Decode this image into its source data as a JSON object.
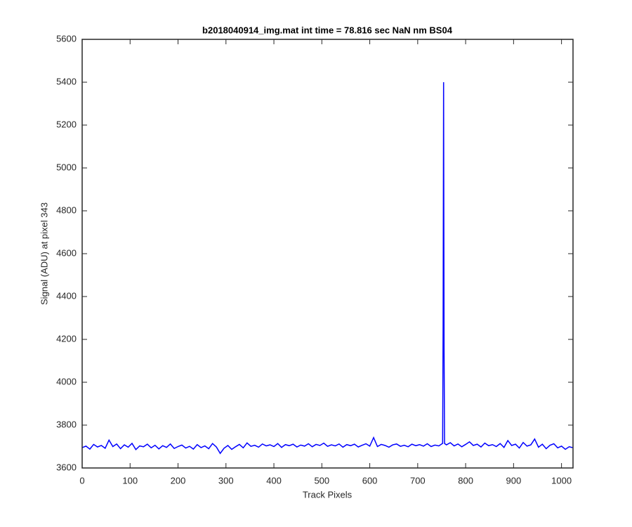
{
  "chart_data": {
    "type": "line",
    "title": "b2018040914_img.mat int time = 78.816 sec  NaN nm BS04",
    "x_label": "Track Pixels",
    "y_label": "Signal (ADU) at pixel 343",
    "xlim": [
      0,
      1024
    ],
    "ylim": [
      3600,
      5600
    ],
    "xticks": [
      0,
      100,
      200,
      300,
      400,
      500,
      600,
      700,
      800,
      900,
      1000
    ],
    "yticks": [
      3600,
      3800,
      4000,
      4200,
      4400,
      4600,
      4800,
      5000,
      5200,
      5400,
      5600
    ],
    "x": [
      0,
      8,
      16,
      24,
      32,
      40,
      48,
      56,
      64,
      72,
      80,
      88,
      96,
      104,
      112,
      120,
      128,
      136,
      144,
      152,
      160,
      168,
      176,
      184,
      192,
      200,
      208,
      216,
      224,
      232,
      240,
      248,
      256,
      264,
      272,
      280,
      288,
      296,
      304,
      312,
      320,
      328,
      336,
      344,
      352,
      360,
      368,
      376,
      384,
      392,
      400,
      408,
      416,
      424,
      432,
      440,
      448,
      456,
      464,
      472,
      480,
      488,
      496,
      504,
      512,
      520,
      528,
      536,
      544,
      552,
      560,
      568,
      576,
      584,
      592,
      600,
      608,
      616,
      624,
      632,
      640,
      648,
      656,
      664,
      672,
      680,
      688,
      696,
      704,
      712,
      720,
      728,
      736,
      744,
      750,
      752,
      753,
      754,
      755,
      756,
      760,
      768,
      776,
      784,
      792,
      800,
      808,
      816,
      824,
      832,
      840,
      848,
      856,
      864,
      872,
      880,
      888,
      896,
      904,
      912,
      920,
      928,
      936,
      944,
      952,
      960,
      968,
      976,
      984,
      992,
      1000,
      1008,
      1016,
      1023
    ],
    "series": [
      {
        "color": "#0000ff",
        "values": [
          3695,
          3702,
          3688,
          3710,
          3698,
          3705,
          3692,
          3730,
          3700,
          3712,
          3690,
          3708,
          3697,
          3715,
          3686,
          3703,
          3699,
          3711,
          3694,
          3706,
          3689,
          3704,
          3696,
          3712,
          3691,
          3700,
          3707,
          3693,
          3701,
          3688,
          3709,
          3695,
          3703,
          3690,
          3714,
          3698,
          3668,
          3692,
          3705,
          3687,
          3699,
          3710,
          3694,
          3717,
          3701,
          3706,
          3697,
          3712,
          3703,
          3708,
          3700,
          3714,
          3696,
          3709,
          3704,
          3711,
          3698,
          3707,
          3702,
          3713,
          3699,
          3710,
          3705,
          3716,
          3701,
          3708,
          3703,
          3712,
          3697,
          3709,
          3704,
          3711,
          3698,
          3706,
          3713,
          3702,
          3742,
          3700,
          3710,
          3705,
          3697,
          3708,
          3712,
          3701,
          3706,
          3699,
          3711,
          3704,
          3709,
          3702,
          3713,
          3700,
          3707,
          3703,
          3712,
          3715,
          4260,
          5400,
          4160,
          3714,
          3708,
          3718,
          3703,
          3712,
          3699,
          3710,
          3722,
          3705,
          3711,
          3698,
          3716,
          3704,
          3709,
          3700,
          3714,
          3696,
          3728,
          3705,
          3711,
          3693,
          3719,
          3702,
          3708,
          3735,
          3697,
          3711,
          3690,
          3706,
          3713,
          3694,
          3702,
          3687,
          3699,
          3695
        ]
      }
    ]
  }
}
